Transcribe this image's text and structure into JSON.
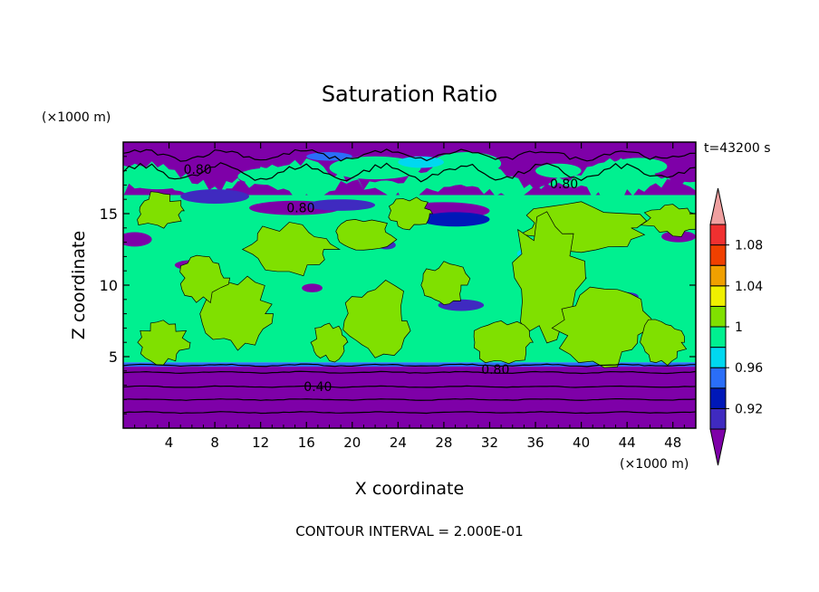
{
  "chart_data": {
    "type": "heatmap",
    "title": "Saturation Ratio",
    "xlabel": "X coordinate",
    "ylabel": "Z coordinate",
    "x_unit": "(×1000 m)",
    "y_unit": "(×1000 m)",
    "time_label": "t=43200 s",
    "footer": "CONTOUR INTERVAL = 2.000E-01",
    "xlim": [
      0,
      50
    ],
    "ylim": [
      0,
      20
    ],
    "x_ticks": [
      "4",
      "8",
      "12",
      "16",
      "20",
      "24",
      "28",
      "32",
      "36",
      "40",
      "44",
      "48"
    ],
    "y_ticks": [
      "5",
      "10",
      "15"
    ],
    "colorbar": {
      "levels": [
        0.9,
        0.92,
        0.94,
        0.96,
        0.98,
        1.0,
        1.02,
        1.04,
        1.06,
        1.08,
        1.1
      ],
      "tick_labels": [
        "0.92",
        "0.96",
        "1",
        "1.04",
        "1.08"
      ],
      "colors": [
        "#7e00a8",
        "#3f2ac0",
        "#0018b8",
        "#2a6ef8",
        "#00d8f0",
        "#00f090",
        "#80e000",
        "#f0f000",
        "#f0a000",
        "#f04000",
        "#f03030",
        "#f0a0a0"
      ]
    },
    "contour_labels": [
      "0.80",
      "0.80",
      "0.80",
      "0.80",
      "0.40"
    ],
    "layers": [
      {
        "z_range": [
          0,
          4.3
        ],
        "value": "< 0.90"
      },
      {
        "z_range": [
          4.3,
          4.6
        ],
        "value": "0.92-0.96"
      },
      {
        "z_range": [
          4.6,
          16.0
        ],
        "value": "0.98-1.02"
      },
      {
        "z_range": [
          16.0,
          20.0
        ],
        "value": "< 0.90 with embedded moist patches"
      }
    ]
  }
}
